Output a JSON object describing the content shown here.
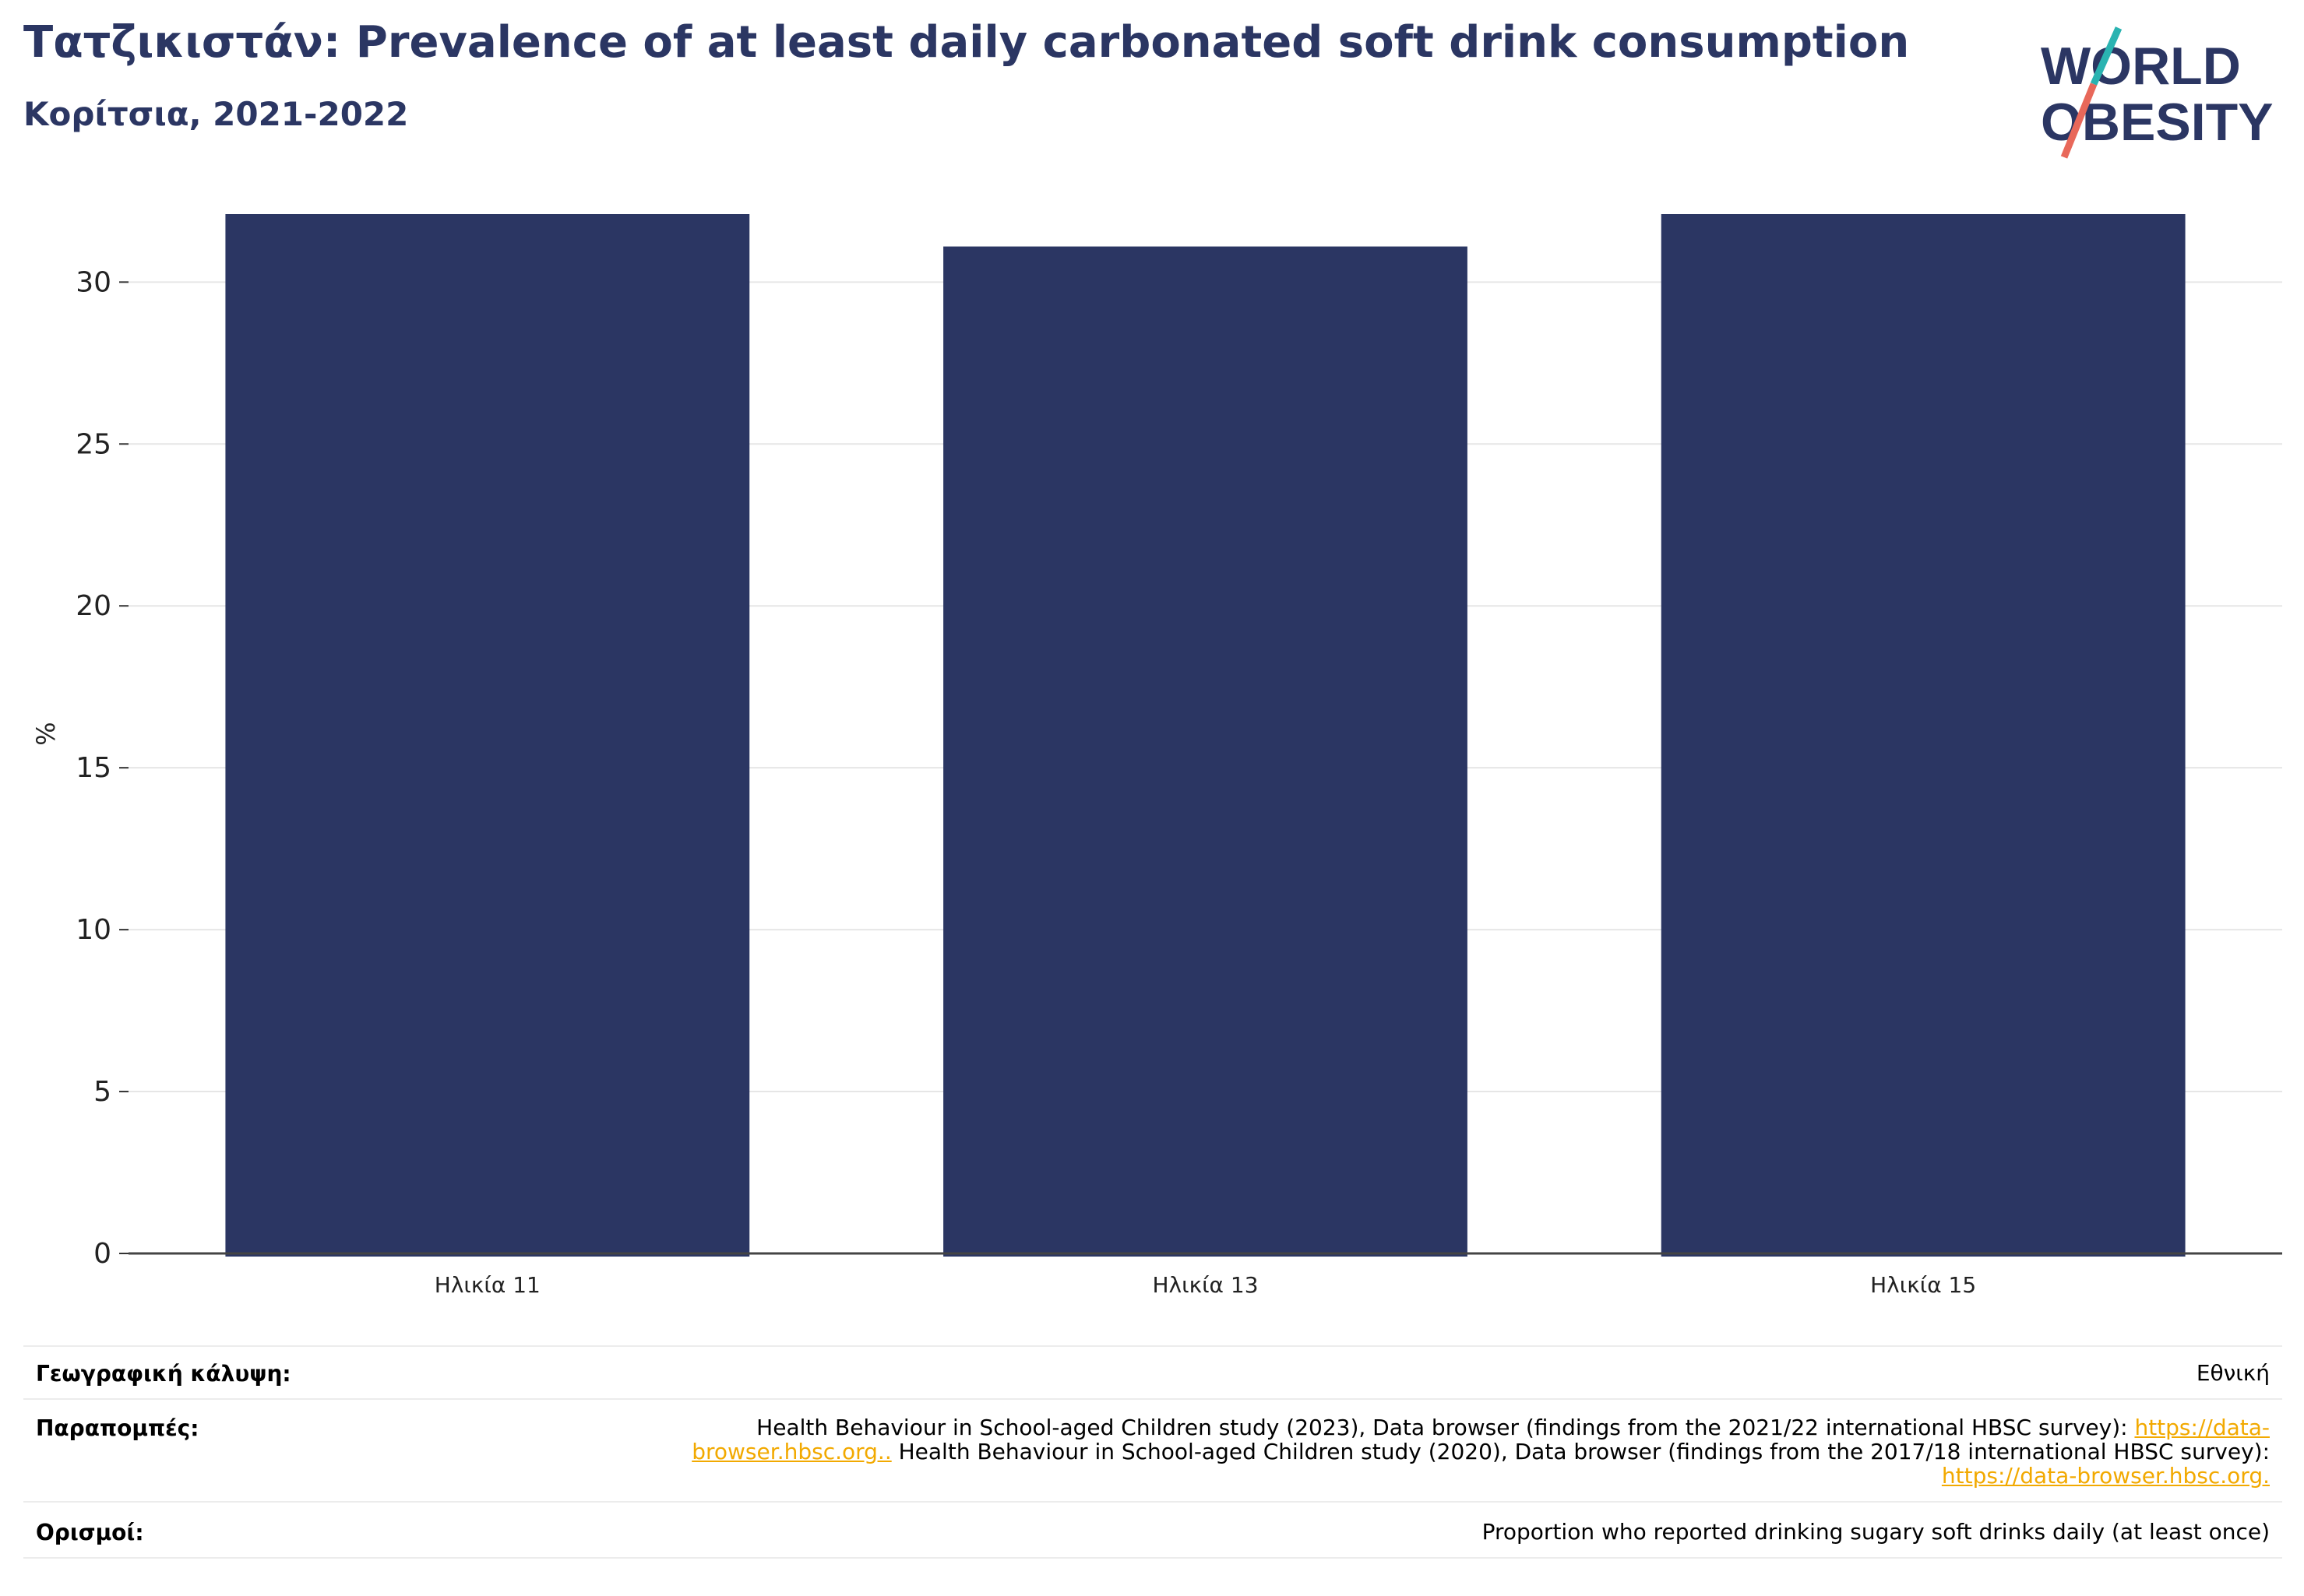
{
  "header": {
    "title": "Τατζικιστάν: Prevalence of at least daily carbonated soft drink consumption",
    "subtitle": "Κορίτσια, 2021-2022"
  },
  "logo": {
    "line1": "WORLD",
    "line2": "OBESITY"
  },
  "chart_data": {
    "type": "bar",
    "categories": [
      "Ηλικία 11",
      "Ηλικία 13",
      "Ηλικία 15"
    ],
    "values": [
      32.1,
      31.1,
      32.1
    ],
    "ylabel": "%",
    "xlabel": "",
    "ylim": [
      0,
      32.1
    ],
    "yticks": [
      0,
      5,
      10,
      15,
      20,
      25,
      30
    ],
    "grid": true,
    "bar_color": "#2b3663"
  },
  "footer": {
    "coverage_label": "Γεωγραφική κάλυψη:",
    "coverage_value": "Εθνική",
    "refs_label": "Παραπομπές:",
    "refs_text1": "Health Behaviour in School-aged Children study (2023), Data browser (findings from the 2021/22 international HBSC survey): ",
    "refs_link1": "https://data-browser.hbsc.org..",
    "refs_text2": " Health Behaviour in School-aged Children study (2020), Data browser (findings from the 2017/18 international HBSC survey): ",
    "refs_link2": "https://data-browser.hbsc.org.",
    "defs_label": "Ορισμοί:",
    "defs_value": "Proportion who reported drinking sugary soft drinks daily (at least once)"
  },
  "colors": {
    "brand_navy": "#2b3663",
    "brand_teal": "#2ab3b1",
    "brand_coral": "#e8685a",
    "link": "#f2a900"
  }
}
